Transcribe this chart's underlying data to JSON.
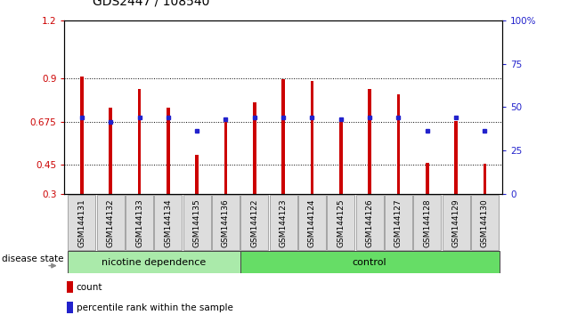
{
  "title": "GDS2447 / 108540",
  "samples": [
    "GSM144131",
    "GSM144132",
    "GSM144133",
    "GSM144134",
    "GSM144135",
    "GSM144136",
    "GSM144122",
    "GSM144123",
    "GSM144124",
    "GSM144125",
    "GSM144126",
    "GSM144127",
    "GSM144128",
    "GSM144129",
    "GSM144130"
  ],
  "red_values": [
    0.91,
    0.745,
    0.845,
    0.745,
    0.5,
    0.685,
    0.775,
    0.895,
    0.885,
    0.69,
    0.845,
    0.815,
    0.46,
    0.68,
    0.455
  ],
  "blue_values": [
    0.695,
    0.674,
    0.695,
    0.695,
    0.625,
    0.685,
    0.695,
    0.695,
    0.695,
    0.685,
    0.695,
    0.695,
    0.625,
    0.695,
    0.625
  ],
  "nicotine_count": 6,
  "control_count": 9,
  "ylim_left": [
    0.3,
    1.2
  ],
  "ylim_right": [
    0,
    100
  ],
  "yticks_left": [
    0.3,
    0.45,
    0.675,
    0.9,
    1.2
  ],
  "ytick_labels_left": [
    "0.3",
    "0.45",
    "0.675",
    "0.9",
    "1.2"
  ],
  "yticks_right": [
    0,
    25,
    50,
    75,
    100
  ],
  "ytick_labels_right": [
    "0",
    "25",
    "50",
    "75",
    "100%"
  ],
  "hlines": [
    0.45,
    0.675,
    0.9
  ],
  "bar_color": "#cc0000",
  "marker_color": "#2222cc",
  "nicotine_bg": "#aaeaaa",
  "control_bg": "#66dd66",
  "label_box_bg": "#dddddd",
  "group_label": "disease state",
  "nicotine_label": "nicotine dependence",
  "control_label": "control",
  "legend_count": "count",
  "legend_percentile": "percentile rank within the sample",
  "title_fontsize": 10,
  "tick_fontsize": 7.5,
  "sample_fontsize": 6.5,
  "group_fontsize": 8,
  "legend_fontsize": 7.5
}
